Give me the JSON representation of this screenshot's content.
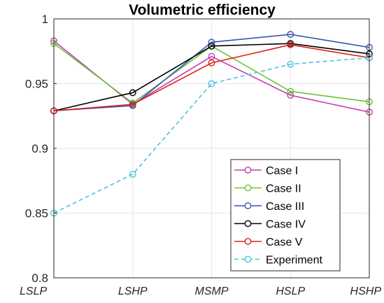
{
  "chart_data": {
    "type": "line",
    "title": "Volumetric efficiency",
    "xlabel": "",
    "ylabel": "",
    "categories": [
      "LSLP",
      "LSHP",
      "MSMP",
      "HSLP",
      "HSHP"
    ],
    "ylim": [
      0.8,
      1
    ],
    "yticks": [
      0.8,
      0.85,
      0.9,
      0.95,
      1
    ],
    "ytick_labels": [
      "0.8",
      "0.85",
      "0.9",
      "0.95",
      "1"
    ],
    "grid": true,
    "legend_position": "bottom-right",
    "series": [
      {
        "name": "Case I",
        "color": "#c040b0",
        "dash": false,
        "values": [
          0.983,
          0.934,
          0.971,
          0.941,
          0.928
        ]
      },
      {
        "name": "Case II",
        "color": "#6cc23a",
        "dash": false,
        "values": [
          0.981,
          0.935,
          0.979,
          0.944,
          0.936
        ]
      },
      {
        "name": "Case III",
        "color": "#3a55b0",
        "dash": false,
        "values": [
          0.929,
          0.933,
          0.982,
          0.988,
          0.978
        ]
      },
      {
        "name": "Case IV",
        "color": "#000000",
        "dash": false,
        "values": [
          0.929,
          0.943,
          0.979,
          0.981,
          0.973
        ]
      },
      {
        "name": "Case V",
        "color": "#e0201a",
        "dash": false,
        "values": [
          0.929,
          0.934,
          0.966,
          0.98,
          0.97
        ]
      },
      {
        "name": "Experiment",
        "color": "#4cc3dc",
        "dash": true,
        "values": [
          0.85,
          0.88,
          0.95,
          0.965,
          0.97
        ]
      }
    ]
  }
}
